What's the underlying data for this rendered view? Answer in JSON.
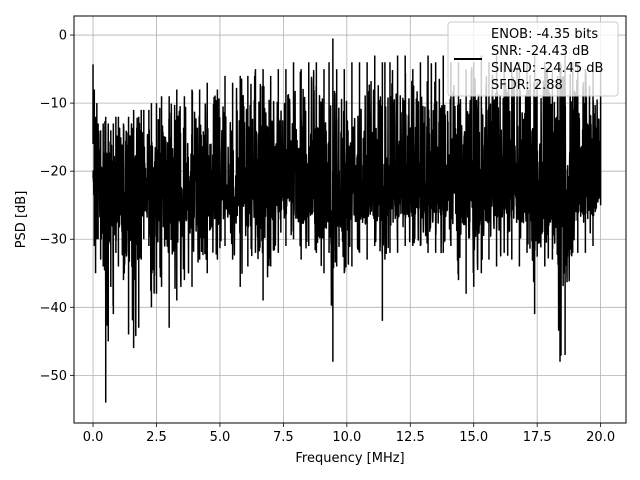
{
  "chart_data": {
    "type": "line",
    "title": "",
    "xlabel": "Frequency [MHz]",
    "ylabel": "PSD [dB]",
    "xlim": [
      -0.75,
      21.0
    ],
    "ylim": [
      -57.0,
      2.8
    ],
    "xticks": [
      0.0,
      2.5,
      5.0,
      7.5,
      10.0,
      12.5,
      15.0,
      17.5,
      20.0
    ],
    "xtick_labels": [
      "0.0",
      "2.5",
      "5.0",
      "7.5",
      "10.0",
      "12.5",
      "15.0",
      "17.5",
      "20.0"
    ],
    "yticks": [
      0,
      -10,
      -20,
      -30,
      -40,
      -50
    ],
    "ytick_labels": [
      "0",
      "−10",
      "−20",
      "−30",
      "−40",
      "−50"
    ],
    "grid": true,
    "legend_position": "top-right",
    "legend_lines": [
      "ENOB: -4.35 bits",
      "SNR: -24.43 dB",
      "SINAD: -24.45 dB",
      "SFDR: 2.88"
    ],
    "line_color": "#000000",
    "series": [
      {
        "x": [
          0.0,
          0.05,
          0.1,
          0.15,
          0.2,
          0.3,
          0.4,
          0.5,
          0.6,
          0.7,
          0.8,
          0.9,
          1.0,
          1.2,
          1.4,
          1.6,
          1.8,
          1.9,
          2.0,
          2.2,
          2.3,
          2.5,
          2.7,
          3.0,
          3.3,
          3.6,
          3.9,
          4.2,
          4.5,
          4.9,
          5.2,
          5.5,
          5.8,
          6.1,
          6.4,
          6.7,
          7.0,
          7.3,
          7.6,
          7.9,
          8.2,
          8.5,
          8.8,
          9.1,
          9.3,
          9.45,
          9.6,
          9.9,
          10.2,
          10.5,
          10.8,
          11.1,
          11.4,
          11.5,
          11.7,
          12.0,
          12.3,
          12.6,
          12.9,
          13.2,
          13.5,
          13.8,
          14.1,
          14.4,
          14.7,
          15.0,
          15.3,
          15.6,
          15.9,
          16.2,
          16.5,
          16.8,
          17.1,
          17.4,
          17.8,
          18.1,
          18.4,
          18.6,
          18.9,
          19.1,
          19.4,
          19.7,
          20.0
        ],
        "y_peak": [
          -4.3,
          -8,
          -12,
          -10,
          -13,
          -14,
          -13,
          -12,
          -13,
          -14,
          -13,
          -12,
          -12,
          -13,
          -12,
          -11,
          -12,
          -11,
          -11,
          -11,
          -10,
          -10,
          -9,
          -9,
          -8,
          -9,
          -8,
          -8,
          -7,
          -8,
          -6,
          -7,
          -6,
          -6,
          -5,
          -5,
          -6,
          -5,
          -5,
          -4,
          -5,
          -4,
          -4,
          -5,
          -4,
          -0.5,
          -5,
          -5,
          -4,
          -4,
          -4,
          -3,
          -4,
          -4,
          -4,
          -3,
          -3,
          -5,
          -4,
          -3,
          -4,
          -3,
          -4,
          -4,
          -5,
          -4,
          -3,
          -4,
          -3,
          -4,
          -5,
          -4,
          -4,
          -3,
          -4,
          -5,
          -4,
          -3,
          -4,
          -4,
          -5,
          -4,
          -5
        ],
        "y_trough": [
          -16,
          -31,
          -35,
          -30,
          -30,
          -33,
          -34,
          -54,
          -45,
          -37,
          -41,
          -32,
          -34,
          -36,
          -44,
          -46,
          -43,
          -33,
          -30,
          -31,
          -40,
          -38,
          -37,
          -43,
          -39,
          -36,
          -37,
          -33,
          -35,
          -33,
          -31,
          -33,
          -37,
          -34,
          -32,
          -39,
          -34,
          -32,
          -31,
          -30,
          -33,
          -31,
          -32,
          -35,
          -32,
          -48,
          -34,
          -35,
          -34,
          -32,
          -33,
          -31,
          -42,
          -33,
          -32,
          -32,
          -31,
          -31,
          -31,
          -32,
          -32,
          -32,
          -31,
          -36,
          -38,
          -37,
          -35,
          -33,
          -34,
          -32,
          -33,
          -34,
          -32,
          -41,
          -34,
          -33,
          -48,
          -47,
          -32,
          -32,
          -32,
          -31,
          -25
        ]
      }
    ]
  }
}
